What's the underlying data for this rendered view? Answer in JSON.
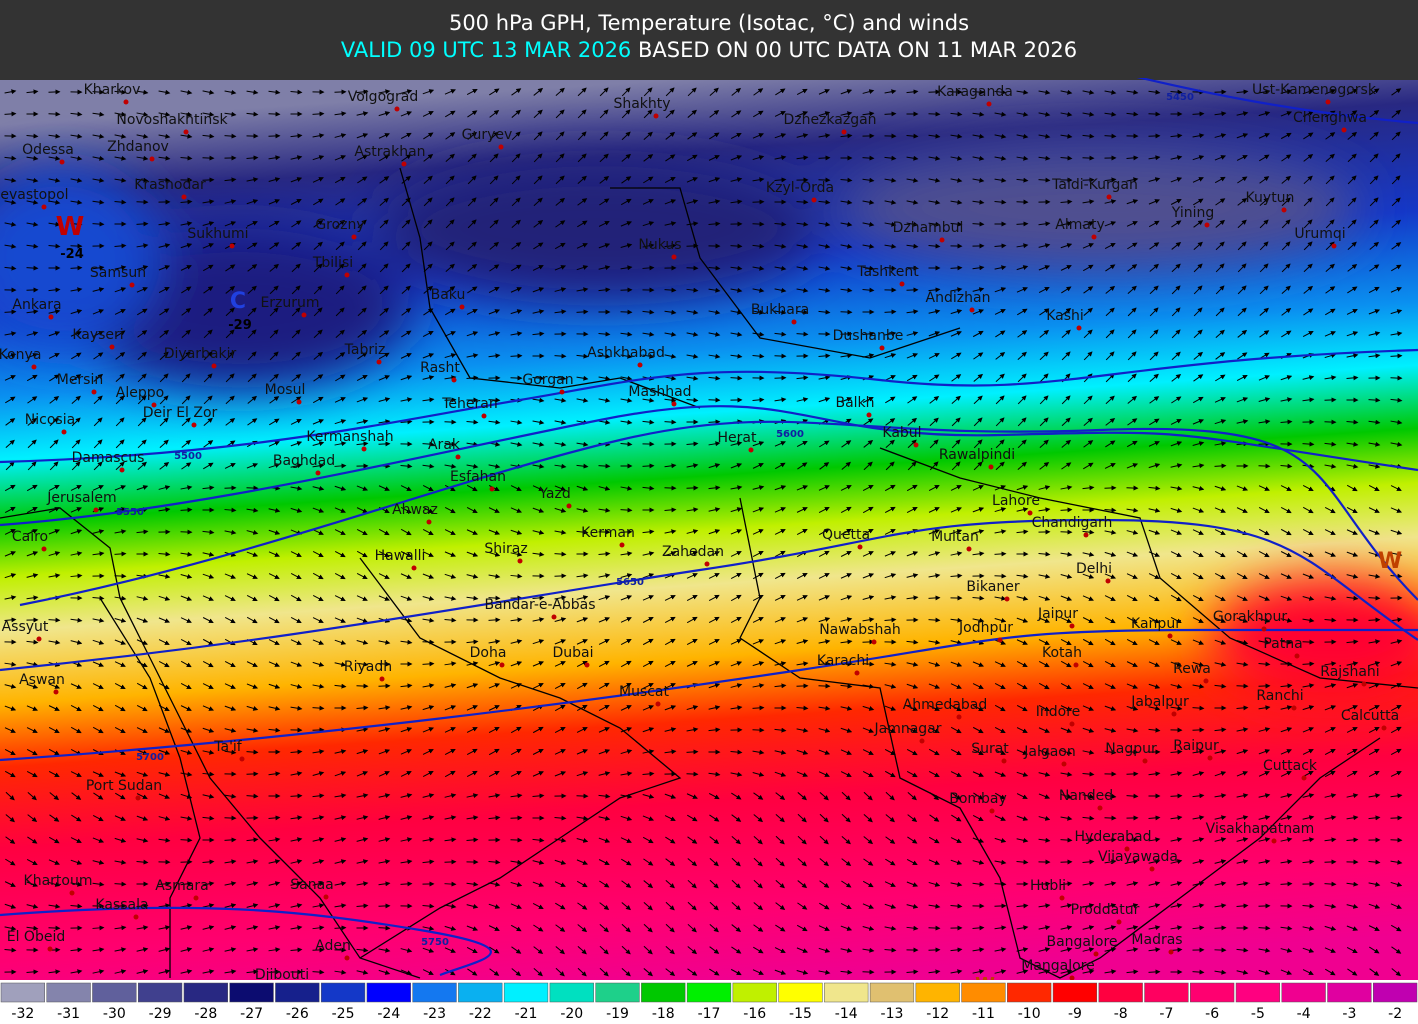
{
  "header": {
    "title": "500 hPa GPH, Temperature (Isotac, °C) and winds",
    "valid": "VALID 09 UTC 13 MAR 2026",
    "based": "BASED ON 00 UTC DATA ON 11 MAR 2026"
  },
  "cities": [
    "Kharkov",
    "Volgograd",
    "Shakhty",
    "Karaganda",
    "Ust-Kamenogorsk",
    "Novoshakhtinsk",
    "Dzhezkazgan",
    "Chenghwa",
    "Odessa",
    "Zhdanov",
    "Guryev",
    "Astrakhan",
    "Krasnodar",
    "Kzyl-Orda",
    "Taldi-Kurgan",
    "Sevastopol",
    "Yining",
    "Kuytun",
    "Dzhambul",
    "Almaty",
    "Sukhumi",
    "Grozny",
    "Nukus",
    "Urumqi",
    "Samsun",
    "Tbilisi",
    "Tashkent",
    "Andizhan",
    "Ankara",
    "Erzurum",
    "Baku",
    "Bukhara",
    "Kashi",
    "Kayseri",
    "Dushanbe",
    "Konya",
    "Diyarbakir",
    "Tabriz",
    "Ashkhabad",
    "Rasht",
    "Mersin",
    "Gorgan",
    "Aleppo",
    "Mosul",
    "Mashhad",
    "Deir El Zor",
    "Teheran",
    "Balkh",
    "Nicosia",
    "Kermanshah",
    "Arak",
    "Kabul",
    "Herat",
    "Damascus",
    "Baghdad",
    "Rawalpindi",
    "Esfahan",
    "Yazd",
    "Lahore",
    "Jerusalem",
    "Ahwaz",
    "Chandigarh",
    "Kerman",
    "Cairo",
    "Quetta",
    "Multan",
    "Hawalli",
    "Shiraz",
    "Zahedan",
    "Delhi",
    "Bikaner",
    "Bandar-e-Abbas",
    "Jaipur",
    "Gorakhpur",
    "Assyut",
    "Nawabshah",
    "Jodhpur",
    "Kanpur",
    "Patna",
    "Doha",
    "Dubai",
    "Kotah",
    "Riyadh",
    "Karachi",
    "Rewa",
    "Rajshahi",
    "Aswan",
    "Muscat",
    "Ranchi",
    "Ahmedabad",
    "Jabalpur",
    "Indore",
    "Calcutta",
    "Jamnagar",
    "Ta'if",
    "Surat",
    "Jalgaon",
    "Nagpur",
    "Raipur",
    "Cuttack",
    "Port Sudan",
    "Bombay",
    "Nanded",
    "Visakhapatnam",
    "Hyderabad",
    "Vijayawada",
    "Khartoum",
    "Asmara",
    "Sanaa",
    "Hubli",
    "Kassala",
    "Proddatur",
    "El Obeid",
    "Aden",
    "Bangalore",
    "Madras",
    "Mangalore",
    "Djibouti"
  ],
  "contours": [
    5450,
    5500,
    5550,
    5600,
    5650,
    5700,
    5750
  ],
  "markers": [
    "W",
    "-24",
    "C",
    "-29",
    "W",
    "W"
  ],
  "legend": {
    "values": [
      -32,
      -31,
      -30,
      -29,
      -28,
      -27,
      -26,
      -25,
      -24,
      -23,
      -22,
      -21,
      -20,
      -19,
      -18,
      -17,
      -16,
      -15,
      -14,
      -13,
      -12,
      -11,
      -10,
      -9,
      -8,
      -7,
      -6,
      -5,
      -4,
      -3,
      -2
    ],
    "colors": [
      "#a0a0bc",
      "#8484ac",
      "#60609c",
      "#40408e",
      "#282882",
      "#0c0c70",
      "#16208c",
      "#1438c8",
      "#0000ff",
      "#1478f0",
      "#0ab0f0",
      "#00f0ff",
      "#00e0c0",
      "#1ed08a",
      "#00c800",
      "#00f000",
      "#c0f000",
      "#ffff00",
      "#f0e68c",
      "#e0c070",
      "#ffb400",
      "#ff8c00",
      "#ff2800",
      "#ff0000",
      "#ff0040",
      "#ff0060",
      "#ff0070",
      "#ff0080",
      "#f00090",
      "#e000a0",
      "#c000b0"
    ]
  }
}
